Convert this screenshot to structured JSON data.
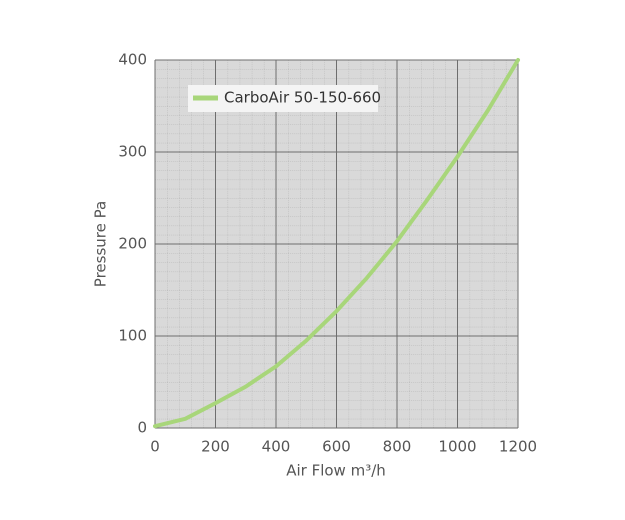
{
  "chart_data": {
    "type": "line",
    "x_label": "Air Flow m³/h",
    "y_label": "Pressure Pa",
    "x": [
      0,
      100,
      200,
      300,
      400,
      500,
      600,
      700,
      800,
      900,
      1000,
      1100,
      1200
    ],
    "series": [
      {
        "name": "CarboAir 50-150-660",
        "color": "#a8d67a",
        "values": [
          2,
          10,
          27,
          45,
          67,
          95,
          127,
          163,
          203,
          248,
          295,
          345,
          400
        ]
      }
    ],
    "xlim": [
      0,
      1200
    ],
    "xticks": [
      0,
      200,
      400,
      600,
      800,
      1000,
      1200
    ],
    "ylim": [
      0,
      400
    ],
    "yticks": [
      0,
      100,
      200,
      300,
      400
    ],
    "grid": true,
    "legend": "top-left"
  }
}
